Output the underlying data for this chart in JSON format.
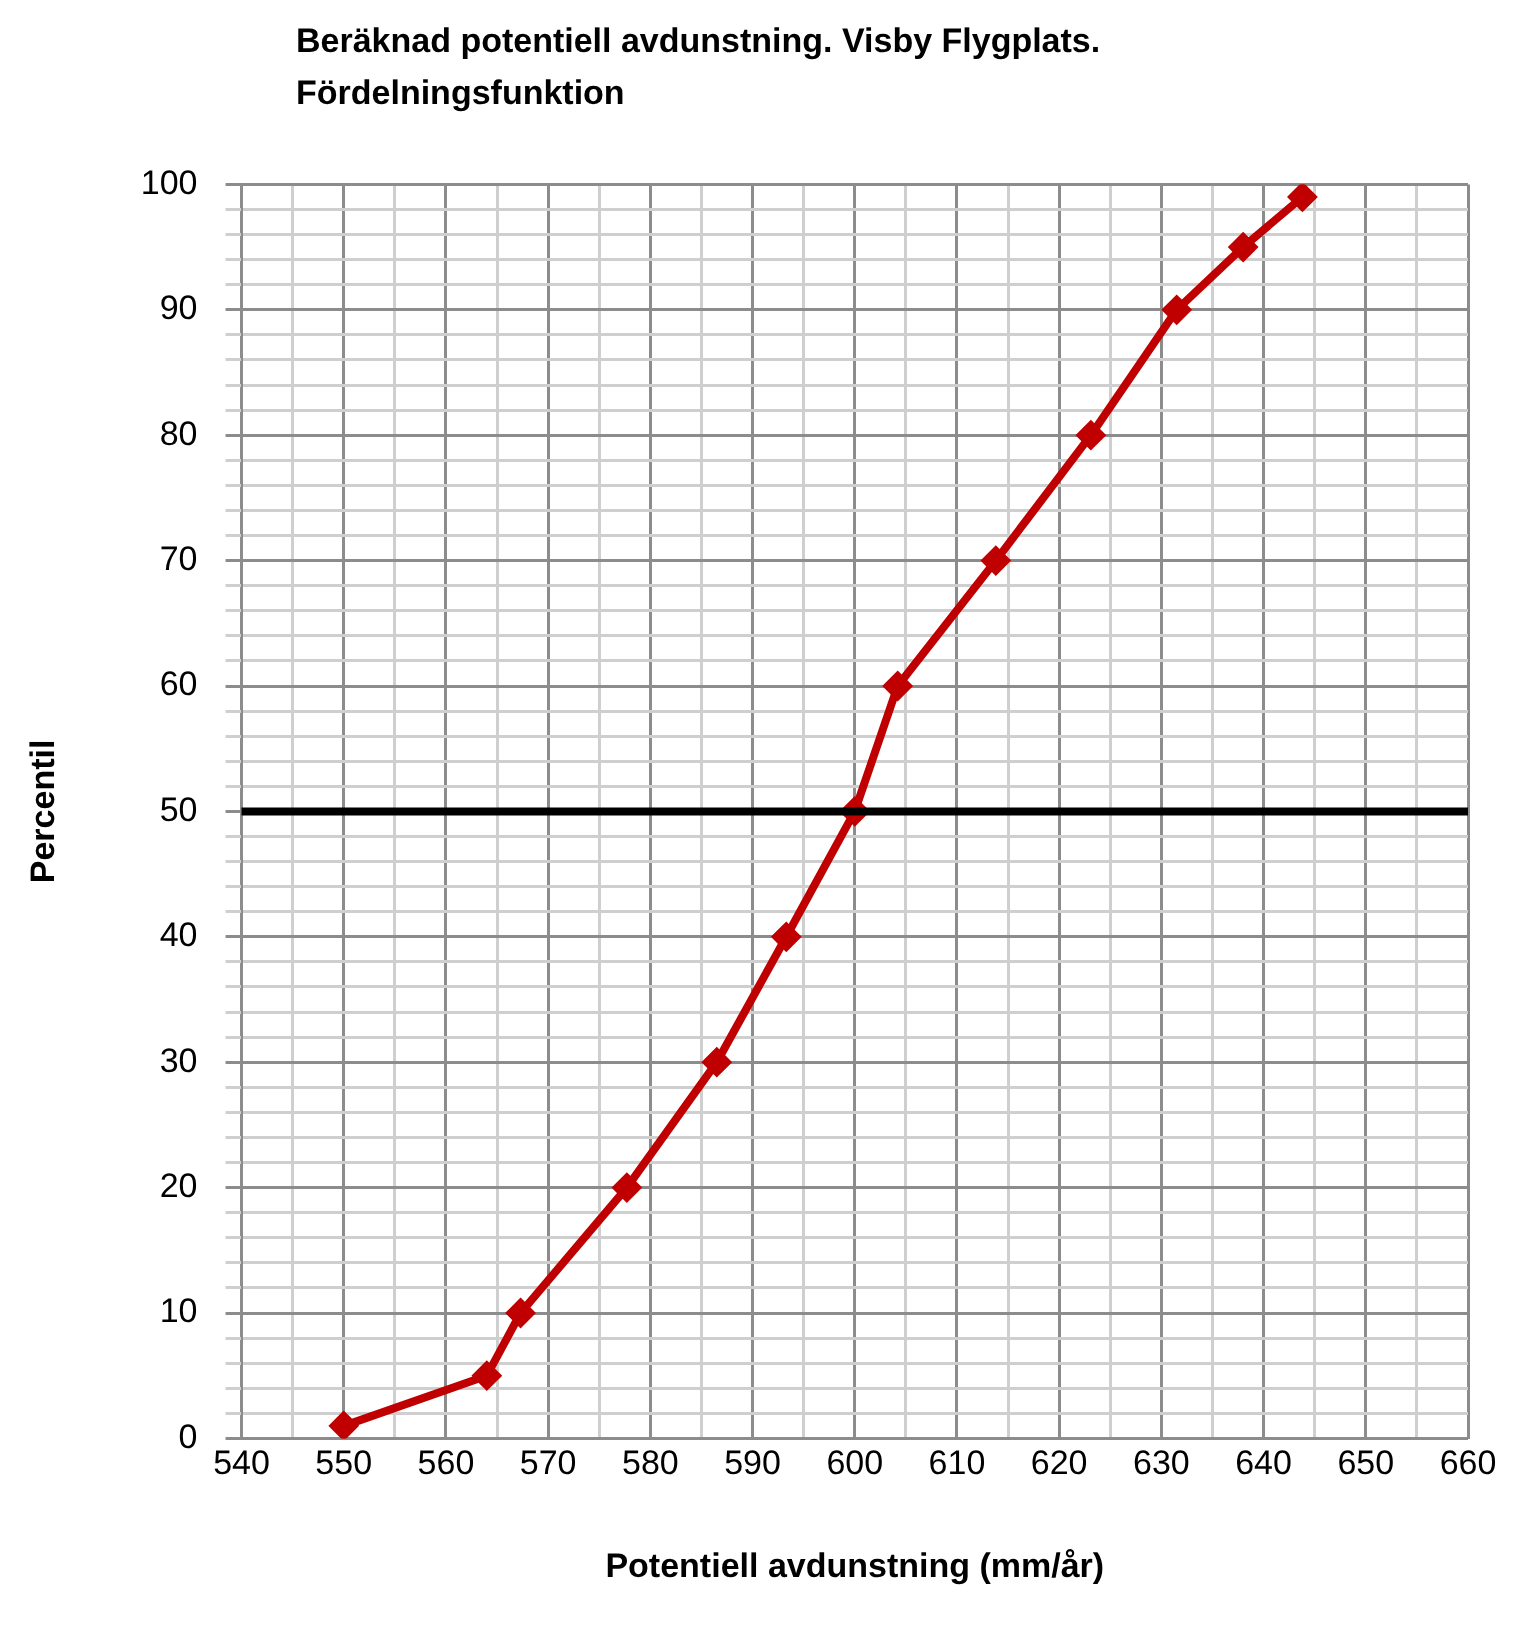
{
  "chart_data": {
    "type": "line",
    "title": "Beräknad potentiell avdunstning. Visby Flygplats. Fördelningsfunktion",
    "xlabel": "Potentiell avdunstning (mm/år)",
    "ylabel": "Percentil",
    "x": [
      550,
      564,
      567.3,
      577.7,
      586.5,
      593.3,
      600,
      604.2,
      613.8,
      623.1,
      631.5,
      638,
      643.8
    ],
    "series": [
      {
        "color": "#c00000",
        "values": [
          1,
          5,
          10,
          20,
          30,
          40,
          50,
          60,
          70,
          80,
          90,
          95,
          99
        ]
      }
    ],
    "xlim": [
      540,
      660
    ],
    "xticks": [
      540,
      {
        "value": 545,
        "label": null
      },
      550,
      {
        "value": 555,
        "label": null
      },
      560,
      {
        "value": 565,
        "label": null
      },
      570,
      {
        "value": 575,
        "label": null
      },
      580,
      {
        "value": 585,
        "label": null
      },
      590,
      {
        "value": 595,
        "label": null
      },
      600,
      {
        "value": 605,
        "label": null
      },
      610,
      {
        "value": 615,
        "label": null
      },
      620,
      {
        "value": 625,
        "label": null
      },
      630,
      {
        "value": 635,
        "label": null
      },
      640,
      {
        "value": 645,
        "label": null
      },
      650,
      {
        "value": 655,
        "label": null
      },
      660
    ],
    "ylim": [
      0,
      100
    ],
    "yticks": [
      0,
      {
        "value": 2,
        "label": null
      },
      {
        "value": 4,
        "label": null
      },
      {
        "value": 6,
        "label": null
      },
      {
        "value": 8,
        "label": null
      },
      10,
      {
        "value": 12,
        "label": null
      },
      {
        "value": 14,
        "label": null
      },
      {
        "value": 16,
        "label": null
      },
      {
        "value": 18,
        "label": null
      },
      20,
      {
        "value": 22,
        "label": null
      },
      {
        "value": 24,
        "label": null
      },
      {
        "value": 26,
        "label": null
      },
      {
        "value": 28,
        "label": null
      },
      30,
      {
        "value": 32,
        "label": null
      },
      {
        "value": 34,
        "label": null
      },
      {
        "value": 36,
        "label": null
      },
      {
        "value": 38,
        "label": null
      },
      40,
      {
        "value": 42,
        "label": null
      },
      {
        "value": 44,
        "label": null
      },
      {
        "value": 46,
        "label": null
      },
      {
        "value": 48,
        "label": null
      },
      50,
      {
        "value": 52,
        "label": null
      },
      {
        "value": 54,
        "label": null
      },
      {
        "value": 56,
        "label": null
      },
      {
        "value": 58,
        "label": null
      },
      60,
      {
        "value": 62,
        "label": null
      },
      {
        "value": 64,
        "label": null
      },
      {
        "value": 66,
        "label": null
      },
      {
        "value": 68,
        "label": null
      },
      70,
      {
        "value": 72,
        "label": null
      },
      {
        "value": 74,
        "label": null
      },
      {
        "value": 76,
        "label": null
      },
      {
        "value": 78,
        "label": null
      },
      80,
      {
        "value": 82,
        "label": null
      },
      {
        "value": 84,
        "label": null
      },
      {
        "value": 86,
        "label": null
      },
      {
        "value": 88,
        "label": null
      },
      90,
      {
        "value": 92,
        "label": null
      },
      {
        "value": 94,
        "label": null
      },
      {
        "value": 96,
        "label": null
      },
      {
        "value": 98,
        "label": null
      },
      100
    ],
    "ref_lines": [
      {
        "axis": "y",
        "value": 50,
        "color": "#000000"
      }
    ],
    "grid": true,
    "legend": false,
    "marker": "diamond",
    "line_style": "solid"
  }
}
